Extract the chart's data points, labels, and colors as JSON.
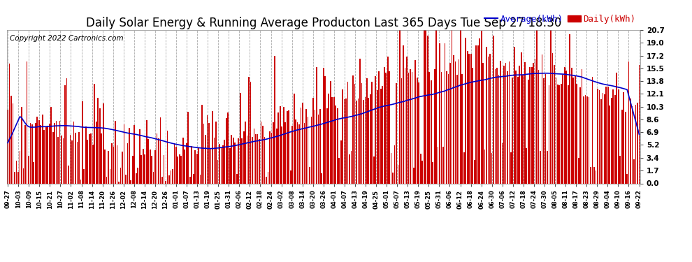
{
  "title": "Daily Solar Energy & Running Average Producton Last 365 Days Tue Sep 27 18:30",
  "copyright": "Copyright 2022 Cartronics.com",
  "ylabel_right_ticks": [
    0.0,
    1.7,
    3.4,
    5.2,
    6.9,
    8.6,
    10.3,
    12.1,
    13.8,
    15.5,
    17.2,
    19.0,
    20.7
  ],
  "bar_color": "#cc0000",
  "avg_line_color": "#0000cc",
  "background_color": "#ffffff",
  "grid_color": "#aaaaaa",
  "legend_avg_label": "Average(kWh)",
  "legend_daily_label": "Daily(kWh)",
  "title_fontsize": 12,
  "copyright_fontsize": 7.5,
  "legend_fontsize": 9,
  "x_labels": [
    "09-27",
    "10-03",
    "10-09",
    "10-15",
    "10-21",
    "10-27",
    "11-02",
    "11-08",
    "11-14",
    "11-20",
    "11-26",
    "12-02",
    "12-08",
    "12-14",
    "12-20",
    "12-26",
    "01-01",
    "01-07",
    "01-13",
    "01-19",
    "01-25",
    "01-31",
    "02-06",
    "02-12",
    "02-18",
    "02-24",
    "03-02",
    "03-08",
    "03-14",
    "03-20",
    "03-26",
    "04-01",
    "04-07",
    "04-13",
    "04-19",
    "04-25",
    "05-01",
    "05-07",
    "05-13",
    "05-19",
    "05-25",
    "05-31",
    "06-06",
    "06-12",
    "06-18",
    "06-24",
    "06-30",
    "07-06",
    "07-12",
    "07-18",
    "07-24",
    "07-30",
    "08-05",
    "08-11",
    "08-17",
    "08-23",
    "08-29",
    "09-04",
    "09-10",
    "09-16",
    "09-22"
  ]
}
